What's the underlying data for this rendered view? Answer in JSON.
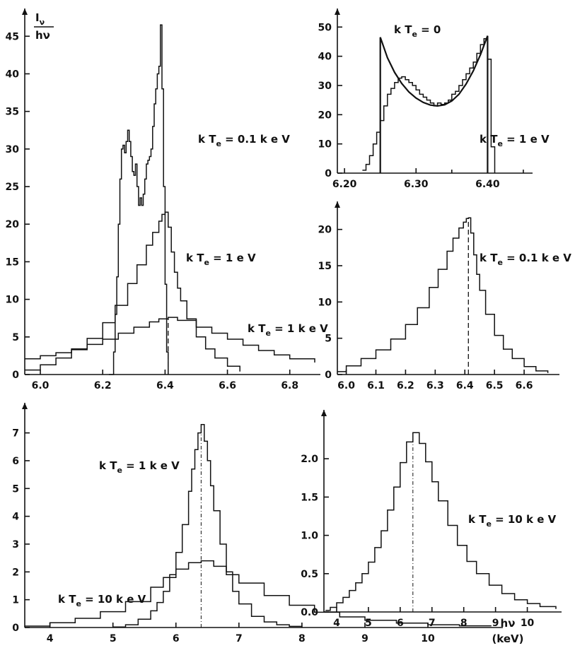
{
  "chart_data": [
    {
      "id": "p1",
      "type": "line",
      "step": true,
      "ylabel_top": "I",
      "ylabel_top_sub": "ν",
      "ylabel_bottom": "hν",
      "xlim": [
        5.95,
        6.88
      ],
      "ylim": [
        0,
        47
      ],
      "xticks": [
        6.0,
        6.2,
        6.4,
        6.6,
        6.8
      ],
      "xticklabels": [
        "6.0",
        "6.2",
        "6.4",
        "6.6",
        "6.8"
      ],
      "yticks": [
        0,
        5,
        10,
        15,
        20,
        25,
        30,
        35,
        40,
        45
      ],
      "yticklabels": [
        "0",
        "5",
        "10",
        "15",
        "20",
        "25",
        "30",
        "35",
        "40",
        "45"
      ],
      "vline": {
        "x": 6.41,
        "y": 7.5,
        "style": "dash"
      },
      "series": [
        {
          "name": "kT_e = 1 eV",
          "label": {
            "main": "k T",
            "sub": "e",
            "rest": " = 1 e V"
          },
          "x": [
            6.22,
            6.235,
            6.24,
            6.245,
            6.25,
            6.255,
            6.26,
            6.265,
            6.27,
            6.275,
            6.28,
            6.285,
            6.29,
            6.295,
            6.3,
            6.305,
            6.31,
            6.315,
            6.32,
            6.325,
            6.33,
            6.335,
            6.34,
            6.345,
            6.35,
            6.355,
            6.36,
            6.365,
            6.37,
            6.375,
            6.38,
            6.385,
            6.39,
            6.395,
            6.4,
            6.405,
            6.41
          ],
          "y": [
            0,
            3,
            8,
            13,
            20,
            26,
            30,
            30.5,
            29.5,
            31,
            32.5,
            31,
            29,
            27,
            26.5,
            28,
            25,
            22.5,
            23.5,
            22.5,
            24,
            26,
            28,
            28.5,
            29,
            30,
            33,
            36,
            38,
            40,
            41,
            46.5,
            38,
            25,
            12,
            3,
            0
          ]
        },
        {
          "name": "kT_e = 0.1 keV",
          "label": {
            "main": "k T",
            "sub": "e",
            "rest": " = 0.1 k e V"
          },
          "x": [
            5.95,
            6.0,
            6.05,
            6.1,
            6.15,
            6.2,
            6.24,
            6.28,
            6.31,
            6.34,
            6.36,
            6.38,
            6.39,
            6.4,
            6.41,
            6.42,
            6.43,
            6.44,
            6.45,
            6.47,
            6.5,
            6.53,
            6.56,
            6.6,
            6.64
          ],
          "y": [
            0.6,
            1.3,
            2.2,
            3.3,
            4.8,
            6.9,
            9.2,
            12.1,
            14.6,
            17.2,
            18.9,
            20.4,
            21.3,
            21.6,
            19.6,
            16.3,
            13.6,
            11.5,
            9.8,
            7.4,
            5.0,
            3.4,
            2.2,
            1.1,
            0.4
          ]
        },
        {
          "name": "kT_e = 1 keV",
          "label": {
            "main": "k T",
            "sub": "e",
            "rest": " = 1 k e V"
          },
          "x": [
            5.95,
            6.0,
            6.05,
            6.1,
            6.15,
            6.2,
            6.25,
            6.3,
            6.35,
            6.38,
            6.41,
            6.44,
            6.5,
            6.55,
            6.6,
            6.65,
            6.7,
            6.75,
            6.8,
            6.88
          ],
          "y": [
            2.1,
            2.5,
            2.9,
            3.4,
            4.0,
            4.7,
            5.5,
            6.3,
            7.0,
            7.4,
            7.6,
            7.2,
            6.3,
            5.5,
            4.7,
            3.9,
            3.2,
            2.6,
            2.1,
            1.6
          ]
        }
      ]
    },
    {
      "id": "p2",
      "type": "line",
      "step": true,
      "xlim": [
        6.19,
        6.455
      ],
      "ylim": [
        0,
        52
      ],
      "xticks": [
        6.2,
        6.3,
        6.4
      ],
      "xticklabels": [
        "6.20",
        "6.30",
        "6.40"
      ],
      "xminor": [
        6.25,
        6.35,
        6.45
      ],
      "yticks": [
        0,
        10,
        20,
        30,
        40,
        50
      ],
      "yticklabels": [
        "0",
        "10",
        "20",
        "30",
        "40",
        "50"
      ],
      "series": [
        {
          "name": "kT_e = 1 eV",
          "label": {
            "main": "k T",
            "sub": "e",
            "rest": " = 1 e V"
          },
          "x": [
            6.225,
            6.23,
            6.235,
            6.24,
            6.245,
            6.25,
            6.255,
            6.26,
            6.265,
            6.27,
            6.275,
            6.28,
            6.285,
            6.29,
            6.295,
            6.3,
            6.305,
            6.31,
            6.315,
            6.32,
            6.325,
            6.33,
            6.335,
            6.34,
            6.345,
            6.35,
            6.355,
            6.36,
            6.365,
            6.37,
            6.375,
            6.38,
            6.385,
            6.39,
            6.395,
            6.4,
            6.405,
            6.41
          ],
          "y": [
            1,
            3,
            6,
            10,
            14,
            18,
            23,
            27,
            29,
            31,
            32.5,
            33,
            32,
            31,
            30,
            28.5,
            27,
            26,
            25,
            24,
            23,
            24,
            23.5,
            24,
            25,
            27,
            28,
            30,
            32,
            34,
            36,
            38,
            41,
            44,
            46,
            39,
            9,
            0
          ]
        },
        {
          "name": "kT_e = 0",
          "label": {
            "main": "k T",
            "sub": "e",
            "rest": " = 0"
          },
          "x": [
            6.25,
            6.26,
            6.27,
            6.28,
            6.29,
            6.3,
            6.31,
            6.32,
            6.33,
            6.34,
            6.35,
            6.36,
            6.37,
            6.38,
            6.39,
            6.4
          ],
          "y": [
            46.5,
            39.5,
            34.5,
            30.7,
            27.8,
            25.7,
            24.2,
            23.3,
            23.0,
            23.4,
            24.7,
            27.0,
            30.5,
            35.0,
            40.5,
            47.0
          ]
        }
      ]
    },
    {
      "id": "p3",
      "type": "line",
      "step": true,
      "xlim": [
        5.97,
        6.7
      ],
      "ylim": [
        0,
        22.5
      ],
      "xticks": [
        6.0,
        6.1,
        6.2,
        6.3,
        6.4,
        6.5,
        6.6
      ],
      "xticklabels": [
        "6.0",
        "6.1",
        "6.2",
        "6.3",
        "6.4",
        "6.5",
        "6.6"
      ],
      "yticks": [
        0,
        5,
        10,
        15,
        20
      ],
      "yticklabels": [
        "0",
        "5",
        "10",
        "15",
        "20"
      ],
      "vline": {
        "x": 6.412,
        "y": 21.6,
        "style": "dash"
      },
      "series": [
        {
          "name": "kT_e = 0.1 keV",
          "label": {
            "main": "k T",
            "sub": "e",
            "rest": " = 0.1 k e V"
          },
          "x": [
            5.97,
            6.0,
            6.05,
            6.1,
            6.15,
            6.2,
            6.24,
            6.28,
            6.31,
            6.34,
            6.36,
            6.38,
            6.395,
            6.405,
            6.412,
            6.42,
            6.43,
            6.44,
            6.45,
            6.47,
            6.5,
            6.53,
            6.56,
            6.6,
            6.64,
            6.68
          ],
          "y": [
            0.4,
            1.2,
            2.2,
            3.4,
            4.9,
            6.9,
            9.2,
            12.0,
            14.5,
            17.0,
            18.8,
            20.2,
            21.0,
            21.5,
            21.6,
            19.5,
            16.5,
            13.8,
            11.6,
            8.3,
            5.4,
            3.5,
            2.2,
            1.1,
            0.5,
            0.2
          ]
        }
      ]
    },
    {
      "id": "p4",
      "type": "line",
      "step": true,
      "xlim": [
        3.6,
        11.1
      ],
      "ylim": [
        0,
        7.6
      ],
      "xticks": [
        4,
        5,
        6,
        7,
        8,
        9,
        10
      ],
      "xticklabels": [
        "4",
        "5",
        "6",
        "7",
        "8",
        "9",
        "10"
      ],
      "yticks": [
        0,
        1,
        2,
        3,
        4,
        5,
        6,
        7
      ],
      "yticklabels": [
        "0",
        "1",
        "2",
        "3",
        "4",
        "5",
        "6",
        "7"
      ],
      "xlabel": "hν",
      "xunit": "(keV)",
      "vline": {
        "x": 6.4,
        "y": 7.3,
        "style": "dashdot"
      },
      "series": [
        {
          "name": "kT_e = 1 keV",
          "label": {
            "main": "k T",
            "sub": "e",
            "rest": " = 1 k e V"
          },
          "x": [
            5.0,
            5.2,
            5.4,
            5.6,
            5.7,
            5.8,
            5.9,
            6.0,
            6.1,
            6.2,
            6.25,
            6.3,
            6.35,
            6.4,
            6.45,
            6.5,
            6.55,
            6.6,
            6.7,
            6.8,
            6.9,
            7.0,
            7.2,
            7.4,
            7.6,
            7.8,
            8.0
          ],
          "y": [
            0.02,
            0.1,
            0.3,
            0.6,
            0.9,
            1.3,
            1.9,
            2.7,
            3.7,
            4.9,
            5.7,
            6.4,
            7.0,
            7.3,
            6.7,
            6.0,
            5.1,
            4.2,
            3.0,
            2.0,
            1.3,
            0.85,
            0.4,
            0.2,
            0.1,
            0.04,
            0.02
          ]
        },
        {
          "name": "kT_e = 10 keV",
          "label": {
            "main": "k T",
            "sub": "e",
            "rest": " = 10 k e V"
          },
          "x": [
            3.6,
            4.0,
            4.4,
            4.8,
            5.2,
            5.6,
            5.8,
            6.0,
            6.2,
            6.4,
            6.6,
            6.8,
            7.0,
            7.4,
            7.8,
            8.2,
            8.6,
            9.0,
            9.5,
            10.0,
            10.5,
            11.0
          ],
          "y": [
            0.05,
            0.17,
            0.33,
            0.57,
            0.93,
            1.45,
            1.8,
            2.1,
            2.33,
            2.4,
            2.2,
            1.9,
            1.6,
            1.15,
            0.8,
            0.55,
            0.38,
            0.26,
            0.16,
            0.1,
            0.06,
            0.04
          ]
        }
      ]
    },
    {
      "id": "p5",
      "type": "line",
      "step": true,
      "xlim": [
        3.6,
        10.9
      ],
      "ylim": [
        0,
        2.5
      ],
      "xticks": [
        4,
        5,
        6,
        7,
        8,
        9,
        10
      ],
      "xticklabels": [
        "4",
        "5",
        "6",
        "7",
        "8",
        "9",
        "10"
      ],
      "yticks": [
        0,
        0.5,
        1.0,
        1.5,
        2.0
      ],
      "yticklabels": [
        "0.0",
        "0.5",
        "1.0",
        "1.5",
        "2.0"
      ],
      "vline": {
        "x": 6.4,
        "y": 2.34,
        "style": "dashdot"
      },
      "series": [
        {
          "name": "kT_e = 10 keV",
          "label": {
            "main": "k T",
            "sub": "e",
            "rest": " = 10 k e V"
          },
          "x": [
            3.65,
            3.8,
            4.0,
            4.2,
            4.4,
            4.6,
            4.8,
            5.0,
            5.2,
            5.4,
            5.6,
            5.8,
            6.0,
            6.2,
            6.4,
            6.6,
            6.8,
            7.0,
            7.2,
            7.5,
            7.8,
            8.1,
            8.4,
            8.8,
            9.2,
            9.6,
            10.0,
            10.4,
            10.9
          ],
          "y": [
            0.02,
            0.06,
            0.12,
            0.19,
            0.28,
            0.38,
            0.5,
            0.65,
            0.84,
            1.06,
            1.33,
            1.63,
            1.95,
            2.22,
            2.34,
            2.2,
            1.96,
            1.7,
            1.45,
            1.13,
            0.87,
            0.66,
            0.5,
            0.35,
            0.24,
            0.16,
            0.11,
            0.07,
            0.04
          ]
        }
      ]
    }
  ]
}
